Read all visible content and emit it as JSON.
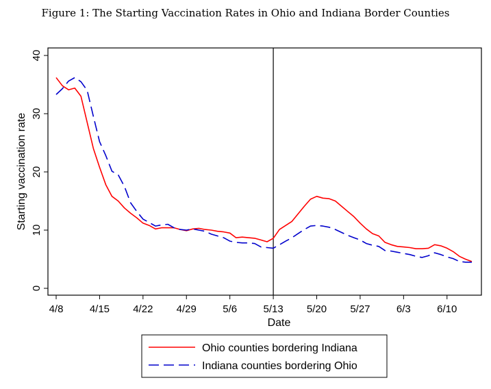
{
  "figure_title": "Figure 1: The Starting Vaccination Rates in Ohio and Indiana Border Counties",
  "chart_data": {
    "type": "line",
    "title": "Figure 1: The Starting Vaccination Rates in Ohio and Indiana Border Counties",
    "xlabel": "Date",
    "ylabel": "Starting vaccination rate",
    "xlim": [
      "2021-04-07",
      "2021-06-14"
    ],
    "ylim": [
      0,
      40
    ],
    "x_ticks": [
      "4/8",
      "4/15",
      "4/22",
      "4/29",
      "5/6",
      "5/13",
      "5/20",
      "5/27",
      "6/3",
      "6/10"
    ],
    "y_ticks": [
      0,
      10,
      20,
      30,
      40
    ],
    "grid": false,
    "vertical_line": "5/13",
    "legend_position": "bottom",
    "series": [
      {
        "name": "Ohio counties bordering Indiana",
        "color": "#ff0000",
        "style": "solid",
        "points": [
          [
            "4/8",
            36.2
          ],
          [
            "4/9",
            34.8
          ],
          [
            "4/10",
            34.1
          ],
          [
            "4/11",
            34.4
          ],
          [
            "4/12",
            33.0
          ],
          [
            "4/13",
            28.5
          ],
          [
            "4/14",
            24.0
          ],
          [
            "4/15",
            20.8
          ],
          [
            "4/16",
            17.8
          ],
          [
            "4/17",
            15.8
          ],
          [
            "4/18",
            15.0
          ],
          [
            "4/19",
            13.8
          ],
          [
            "4/20",
            12.9
          ],
          [
            "4/21",
            12.1
          ],
          [
            "4/22",
            11.2
          ],
          [
            "4/23",
            10.8
          ],
          [
            "4/24",
            10.2
          ],
          [
            "4/25",
            10.4
          ],
          [
            "4/26",
            10.4
          ],
          [
            "4/27",
            10.4
          ],
          [
            "4/28",
            10.1
          ],
          [
            "4/29",
            9.9
          ],
          [
            "4/30",
            10.2
          ],
          [
            "5/1",
            10.3
          ],
          [
            "5/2",
            10.1
          ],
          [
            "5/3",
            10.0
          ],
          [
            "5/4",
            9.8
          ],
          [
            "5/5",
            9.7
          ],
          [
            "5/6",
            9.5
          ],
          [
            "5/7",
            8.7
          ],
          [
            "5/8",
            8.8
          ],
          [
            "5/9",
            8.7
          ],
          [
            "5/10",
            8.6
          ],
          [
            "5/11",
            8.3
          ],
          [
            "5/12",
            8.0
          ],
          [
            "5/13",
            8.6
          ],
          [
            "5/14",
            10.1
          ],
          [
            "5/15",
            10.8
          ],
          [
            "5/16",
            11.5
          ],
          [
            "5/17",
            12.8
          ],
          [
            "5/18",
            14.1
          ],
          [
            "5/19",
            15.3
          ],
          [
            "5/20",
            15.8
          ],
          [
            "5/21",
            15.5
          ],
          [
            "5/22",
            15.4
          ],
          [
            "5/23",
            15.0
          ],
          [
            "5/24",
            14.1
          ],
          [
            "5/25",
            13.2
          ],
          [
            "5/26",
            12.3
          ],
          [
            "5/27",
            11.2
          ],
          [
            "5/28",
            10.2
          ],
          [
            "5/29",
            9.4
          ],
          [
            "5/30",
            9.0
          ],
          [
            "5/31",
            7.9
          ],
          [
            "6/1",
            7.5
          ],
          [
            "6/2",
            7.2
          ],
          [
            "6/3",
            7.1
          ],
          [
            "6/4",
            7.0
          ],
          [
            "6/5",
            6.8
          ],
          [
            "6/6",
            6.8
          ],
          [
            "6/7",
            6.9
          ],
          [
            "6/8",
            7.5
          ],
          [
            "6/9",
            7.3
          ],
          [
            "6/10",
            6.9
          ],
          [
            "6/11",
            6.3
          ],
          [
            "6/12",
            5.5
          ],
          [
            "6/13",
            5.0
          ],
          [
            "6/14",
            4.6
          ]
        ]
      },
      {
        "name": "Indiana counties bordering Ohio",
        "color": "#0000cc",
        "style": "dashed",
        "points": [
          [
            "4/8",
            33.3
          ],
          [
            "4/9",
            34.3
          ],
          [
            "4/10",
            35.6
          ],
          [
            "4/11",
            36.2
          ],
          [
            "4/12",
            35.5
          ],
          [
            "4/13",
            34.0
          ],
          [
            "4/14",
            29.5
          ],
          [
            "4/15",
            25.2
          ],
          [
            "4/16",
            22.8
          ],
          [
            "4/17",
            20.1
          ],
          [
            "4/18",
            19.5
          ],
          [
            "4/19",
            17.5
          ],
          [
            "4/20",
            14.7
          ],
          [
            "4/21",
            13.2
          ],
          [
            "4/22",
            11.9
          ],
          [
            "4/23",
            11.3
          ],
          [
            "4/24",
            10.7
          ],
          [
            "4/25",
            10.9
          ],
          [
            "4/26",
            11.0
          ],
          [
            "4/27",
            10.4
          ],
          [
            "4/28",
            10.1
          ],
          [
            "4/29",
            10.0
          ],
          [
            "4/30",
            10.2
          ],
          [
            "5/1",
            10.0
          ],
          [
            "5/2",
            9.8
          ],
          [
            "5/3",
            9.3
          ],
          [
            "5/4",
            9.0
          ],
          [
            "5/5",
            8.7
          ],
          [
            "5/6",
            8.1
          ],
          [
            "5/7",
            7.9
          ],
          [
            "5/8",
            7.8
          ],
          [
            "5/9",
            7.8
          ],
          [
            "5/10",
            7.7
          ],
          [
            "5/11",
            7.1
          ],
          [
            "5/12",
            7.0
          ],
          [
            "5/13",
            6.9
          ],
          [
            "5/14",
            7.5
          ],
          [
            "5/15",
            8.1
          ],
          [
            "5/16",
            8.7
          ],
          [
            "5/17",
            9.4
          ],
          [
            "5/18",
            10.1
          ],
          [
            "5/19",
            10.7
          ],
          [
            "5/20",
            10.8
          ],
          [
            "5/21",
            10.7
          ],
          [
            "5/22",
            10.5
          ],
          [
            "5/23",
            10.1
          ],
          [
            "5/24",
            9.6
          ],
          [
            "5/25",
            9.1
          ],
          [
            "5/26",
            8.7
          ],
          [
            "5/27",
            8.3
          ],
          [
            "5/28",
            7.7
          ],
          [
            "5/29",
            7.4
          ],
          [
            "5/30",
            7.2
          ],
          [
            "5/31",
            6.5
          ],
          [
            "6/1",
            6.4
          ],
          [
            "6/2",
            6.2
          ],
          [
            "6/3",
            6.0
          ],
          [
            "6/4",
            5.8
          ],
          [
            "6/5",
            5.5
          ],
          [
            "6/6",
            5.3
          ],
          [
            "6/7",
            5.6
          ],
          [
            "6/8",
            6.1
          ],
          [
            "6/9",
            5.8
          ],
          [
            "6/10",
            5.4
          ],
          [
            "6/11",
            5.1
          ],
          [
            "6/12",
            4.6
          ],
          [
            "6/13",
            4.5
          ],
          [
            "6/14",
            4.5
          ]
        ]
      }
    ]
  }
}
